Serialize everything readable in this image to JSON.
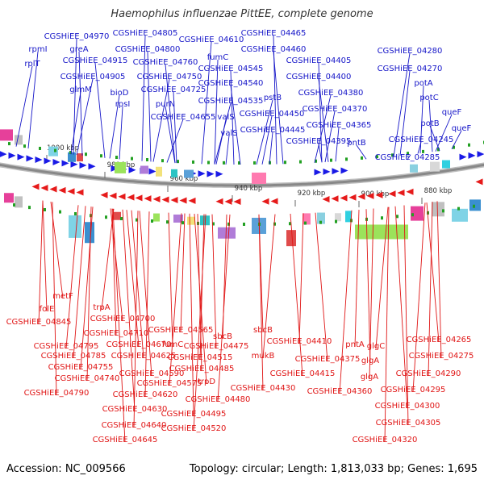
{
  "title": "Haemophilus influenzae PittEE, complete genome",
  "accession": "Accession: NC_009566",
  "topology": "Topology: circular; Length: 1,813,033 bp; Genes: 1,695",
  "colors": {
    "top_label": "#1515c8",
    "bottom_label": "#e01515",
    "fwd_arrow": "#1a1ae6",
    "rev_arrow": "#e61a1a",
    "backbone": "#888888"
  },
  "ticks": [
    "1000 kbp",
    "980 kbp",
    "960 kbp",
    "940 kbp",
    "920 kbp",
    "900 kbp",
    "880 kbp"
  ],
  "top_labels": [
    "rplT",
    "rpmI",
    "CGSHiEE_04970",
    "greA",
    "CGSHiEE_04915",
    "CGSHiEE_04905",
    "glmM",
    "CGSHiEE_04805",
    "CGSHiEE_04800",
    "CGSHiEE_04760",
    "CGSHiEE_04750",
    "bioD",
    "rpsI",
    "CGSHiEE_04725",
    "purN",
    "CGSHiEE_04655",
    "CGSHiEE_04610",
    "fumC",
    "CGSHiEE_04545",
    "CGSHiEE_04540",
    "CGSHiEE_04535",
    "valS",
    "valS",
    "CGSHiEE_04465",
    "CGSHiEE_04460",
    "pstB",
    "CGSHiEE_04450",
    "CGSHiEE_04445",
    "CGSHiEE_04405",
    "CGSHiEE_04400",
    "CGSHiEE_04380",
    "CGSHiEE_04370",
    "CGSHiEE_04365",
    "CGSHiEE_04395",
    "pntB",
    "CGSHiEE_04280",
    "CGSHiEE_04270",
    "potA",
    "potC",
    "potB",
    "queF",
    "queF",
    "CGSHiEE_04245",
    "CGSHiEE_04285"
  ],
  "bottom_labels": [
    "metF",
    "folE",
    "CGSHiEE_04845",
    "trpA",
    "CGSHiEE_04700",
    "CGSHiEE_04710",
    "CGSHiEE_04565",
    "CGSHiEE_04795",
    "CGSHiEE_04670",
    "fumC",
    "sbcB",
    "CGSHiEE_04785",
    "CGSHiEE_04625",
    "CGSHiEE_04475",
    "CGSHiEE_04515",
    "CGSHiEE_04755",
    "CGSHiEE_04590",
    "CGSHiEE_04485",
    "CGSHiEE_04740",
    "CGSHiEE_04575",
    "trpD",
    "CGSHiEE_04790",
    "CGSHiEE_04620",
    "CGSHiEE_04480",
    "CGSHiEE_04630",
    "CGSHiEE_04495",
    "CGSHiEE_04640",
    "CGSHiEE_04520",
    "CGSHiEE_04645",
    "sbcB",
    "CGSHiEE_04410",
    "mukB",
    "CGSHiEE_04415",
    "CGSHiEE_04430",
    "pntA",
    "glgC",
    "CGSHiEE_04375",
    "glgA",
    "glgA",
    "CGSHiEE_04360",
    "CGSHiEE_04265",
    "CGSHiEE_04275",
    "CGSHiEE_04290",
    "CGSHiEE_04295",
    "CGSHiEE_04300",
    "CGSHiEE_04305",
    "CGSHiEE_04320"
  ]
}
